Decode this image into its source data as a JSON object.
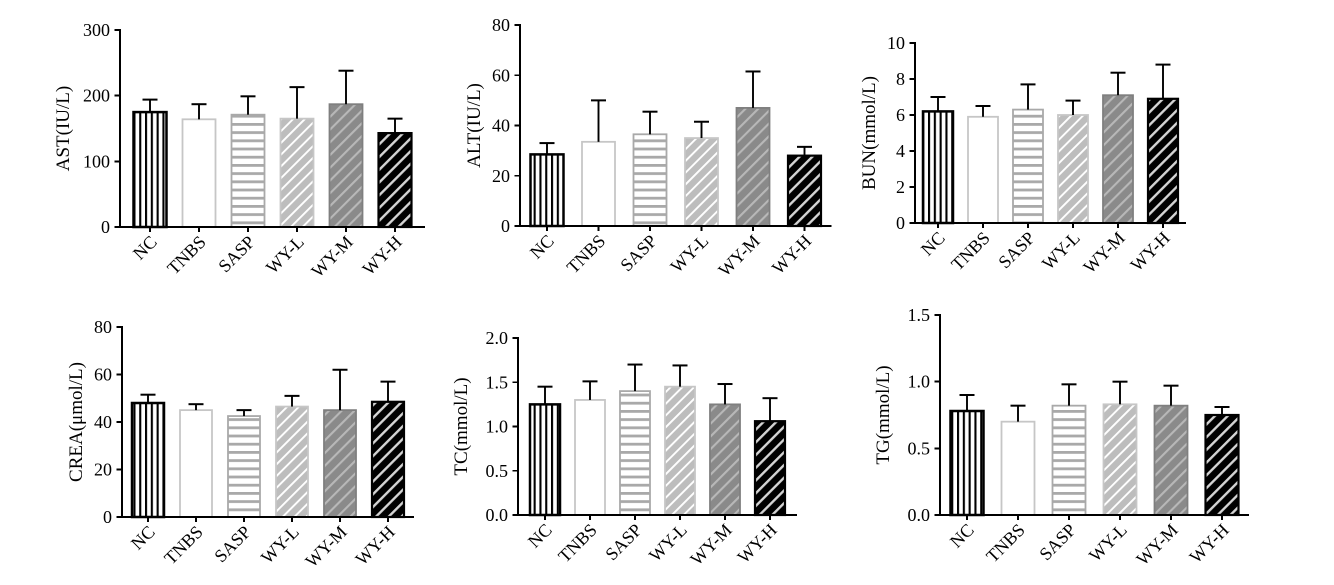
{
  "figure": {
    "background": "#ffffff",
    "text_color": "#000000",
    "grid_rows": 2,
    "grid_cols": 3
  },
  "categories": [
    "NC",
    "TNBS",
    "SASP",
    "WY-L",
    "WY-M",
    "WY-H"
  ],
  "bar_styles": [
    {
      "category": "NC",
      "pattern": "vertical-stripes",
      "fill": "#ffffff",
      "stripe": "#000000",
      "border": "#000000"
    },
    {
      "category": "TNBS",
      "pattern": "solid",
      "fill": "#ffffff",
      "stripe": null,
      "border": "#c6c6c6"
    },
    {
      "category": "SASP",
      "pattern": "horizontal-stripes",
      "fill": "#ffffff",
      "stripe": "#a9a9a9",
      "border": "#a9a9a9"
    },
    {
      "category": "WY-L",
      "pattern": "diagonal-stripes",
      "fill": "#bdbdbd",
      "stripe": "#ffffff",
      "border": "#c6c6c6"
    },
    {
      "category": "WY-M",
      "pattern": "diagonal-stripes",
      "fill": "#8a8a8a",
      "stripe": "#b8b8b8",
      "border": "#7f7f7f"
    },
    {
      "category": "WY-H",
      "pattern": "diagonal-stripes",
      "fill": "#000000",
      "stripe": "#d4d4d4",
      "border": "#000000"
    }
  ],
  "error_bar_color": "#000000",
  "chart_data": [
    {
      "id": "ast",
      "type": "bar",
      "title": "",
      "ylabel": "AST(IU/L)",
      "xlabel": "",
      "categories": [
        "NC",
        "TNBS",
        "SASP",
        "WY-L",
        "WY-M",
        "WY-H"
      ],
      "values": [
        175,
        164,
        171,
        165,
        187,
        143
      ],
      "errors": [
        19,
        23,
        28,
        48,
        51,
        22
      ],
      "ylim": [
        0,
        300
      ],
      "yticks": [
        0,
        100,
        200,
        300
      ],
      "ytick_labels": [
        "0",
        "100",
        "200",
        "300"
      ],
      "grid": false,
      "legend": null
    },
    {
      "id": "alt",
      "type": "bar",
      "title": "",
      "ylabel": "ALT(IU/L)",
      "xlabel": "",
      "categories": [
        "NC",
        "TNBS",
        "SASP",
        "WY-L",
        "WY-M",
        "WY-H"
      ],
      "values": [
        28.5,
        33.5,
        36.5,
        35,
        47,
        28
      ],
      "errors": [
        4.5,
        16.5,
        9,
        6.5,
        14.5,
        3.5
      ],
      "ylim": [
        0,
        80
      ],
      "yticks": [
        0,
        20,
        40,
        60,
        80
      ],
      "ytick_labels": [
        "0",
        "20",
        "40",
        "60",
        "80"
      ],
      "grid": false,
      "legend": null
    },
    {
      "id": "bun",
      "type": "bar",
      "title": "",
      "ylabel": "BUN(mmol/L)",
      "xlabel": "",
      "categories": [
        "NC",
        "TNBS",
        "SASP",
        "WY-L",
        "WY-M",
        "WY-H"
      ],
      "values": [
        6.2,
        5.9,
        6.3,
        6.0,
        7.1,
        6.9
      ],
      "errors": [
        0.8,
        0.6,
        1.4,
        0.8,
        1.25,
        1.9
      ],
      "ylim": [
        0,
        10
      ],
      "yticks": [
        0,
        2,
        4,
        6,
        8,
        10
      ],
      "ytick_labels": [
        "0",
        "2",
        "4",
        "6",
        "8",
        "10"
      ],
      "grid": false,
      "legend": null
    },
    {
      "id": "crea",
      "type": "bar",
      "title": "",
      "ylabel": "CREA(μmol/L)",
      "xlabel": "",
      "categories": [
        "NC",
        "TNBS",
        "SASP",
        "WY-L",
        "WY-M",
        "WY-H"
      ],
      "values": [
        48,
        45,
        42.5,
        46.5,
        45,
        48.5
      ],
      "errors": [
        3.5,
        2.5,
        2.5,
        4.5,
        17,
        8.5
      ],
      "ylim": [
        0,
        80
      ],
      "yticks": [
        0,
        20,
        40,
        60,
        80
      ],
      "ytick_labels": [
        "0",
        "20",
        "40",
        "60",
        "80"
      ],
      "grid": false,
      "legend": null
    },
    {
      "id": "tc",
      "type": "bar",
      "title": "",
      "ylabel": "TC(mmol/L)",
      "xlabel": "",
      "categories": [
        "NC",
        "TNBS",
        "SASP",
        "WY-L",
        "WY-M",
        "WY-H"
      ],
      "values": [
        1.25,
        1.3,
        1.4,
        1.45,
        1.25,
        1.06
      ],
      "errors": [
        0.2,
        0.21,
        0.3,
        0.24,
        0.23,
        0.26
      ],
      "ylim": [
        0,
        2.0
      ],
      "yticks": [
        0,
        0.5,
        1.0,
        1.5,
        2.0
      ],
      "ytick_labels": [
        "0.0",
        "0.5",
        "1.0",
        "1.5",
        "2.0"
      ],
      "grid": false,
      "legend": null
    },
    {
      "id": "tg",
      "type": "bar",
      "title": "",
      "ylabel": "TG(mmol/L)",
      "xlabel": "",
      "categories": [
        "NC",
        "TNBS",
        "SASP",
        "WY-L",
        "WY-M",
        "WY-H"
      ],
      "values": [
        0.78,
        0.7,
        0.82,
        0.83,
        0.82,
        0.75
      ],
      "errors": [
        0.12,
        0.12,
        0.16,
        0.17,
        0.15,
        0.06
      ],
      "ylim": [
        0,
        1.5
      ],
      "yticks": [
        0,
        0.5,
        1.0,
        1.5
      ],
      "ytick_labels": [
        "0.0",
        "0.5",
        "1.0",
        "1.5"
      ],
      "grid": false,
      "legend": null
    }
  ]
}
